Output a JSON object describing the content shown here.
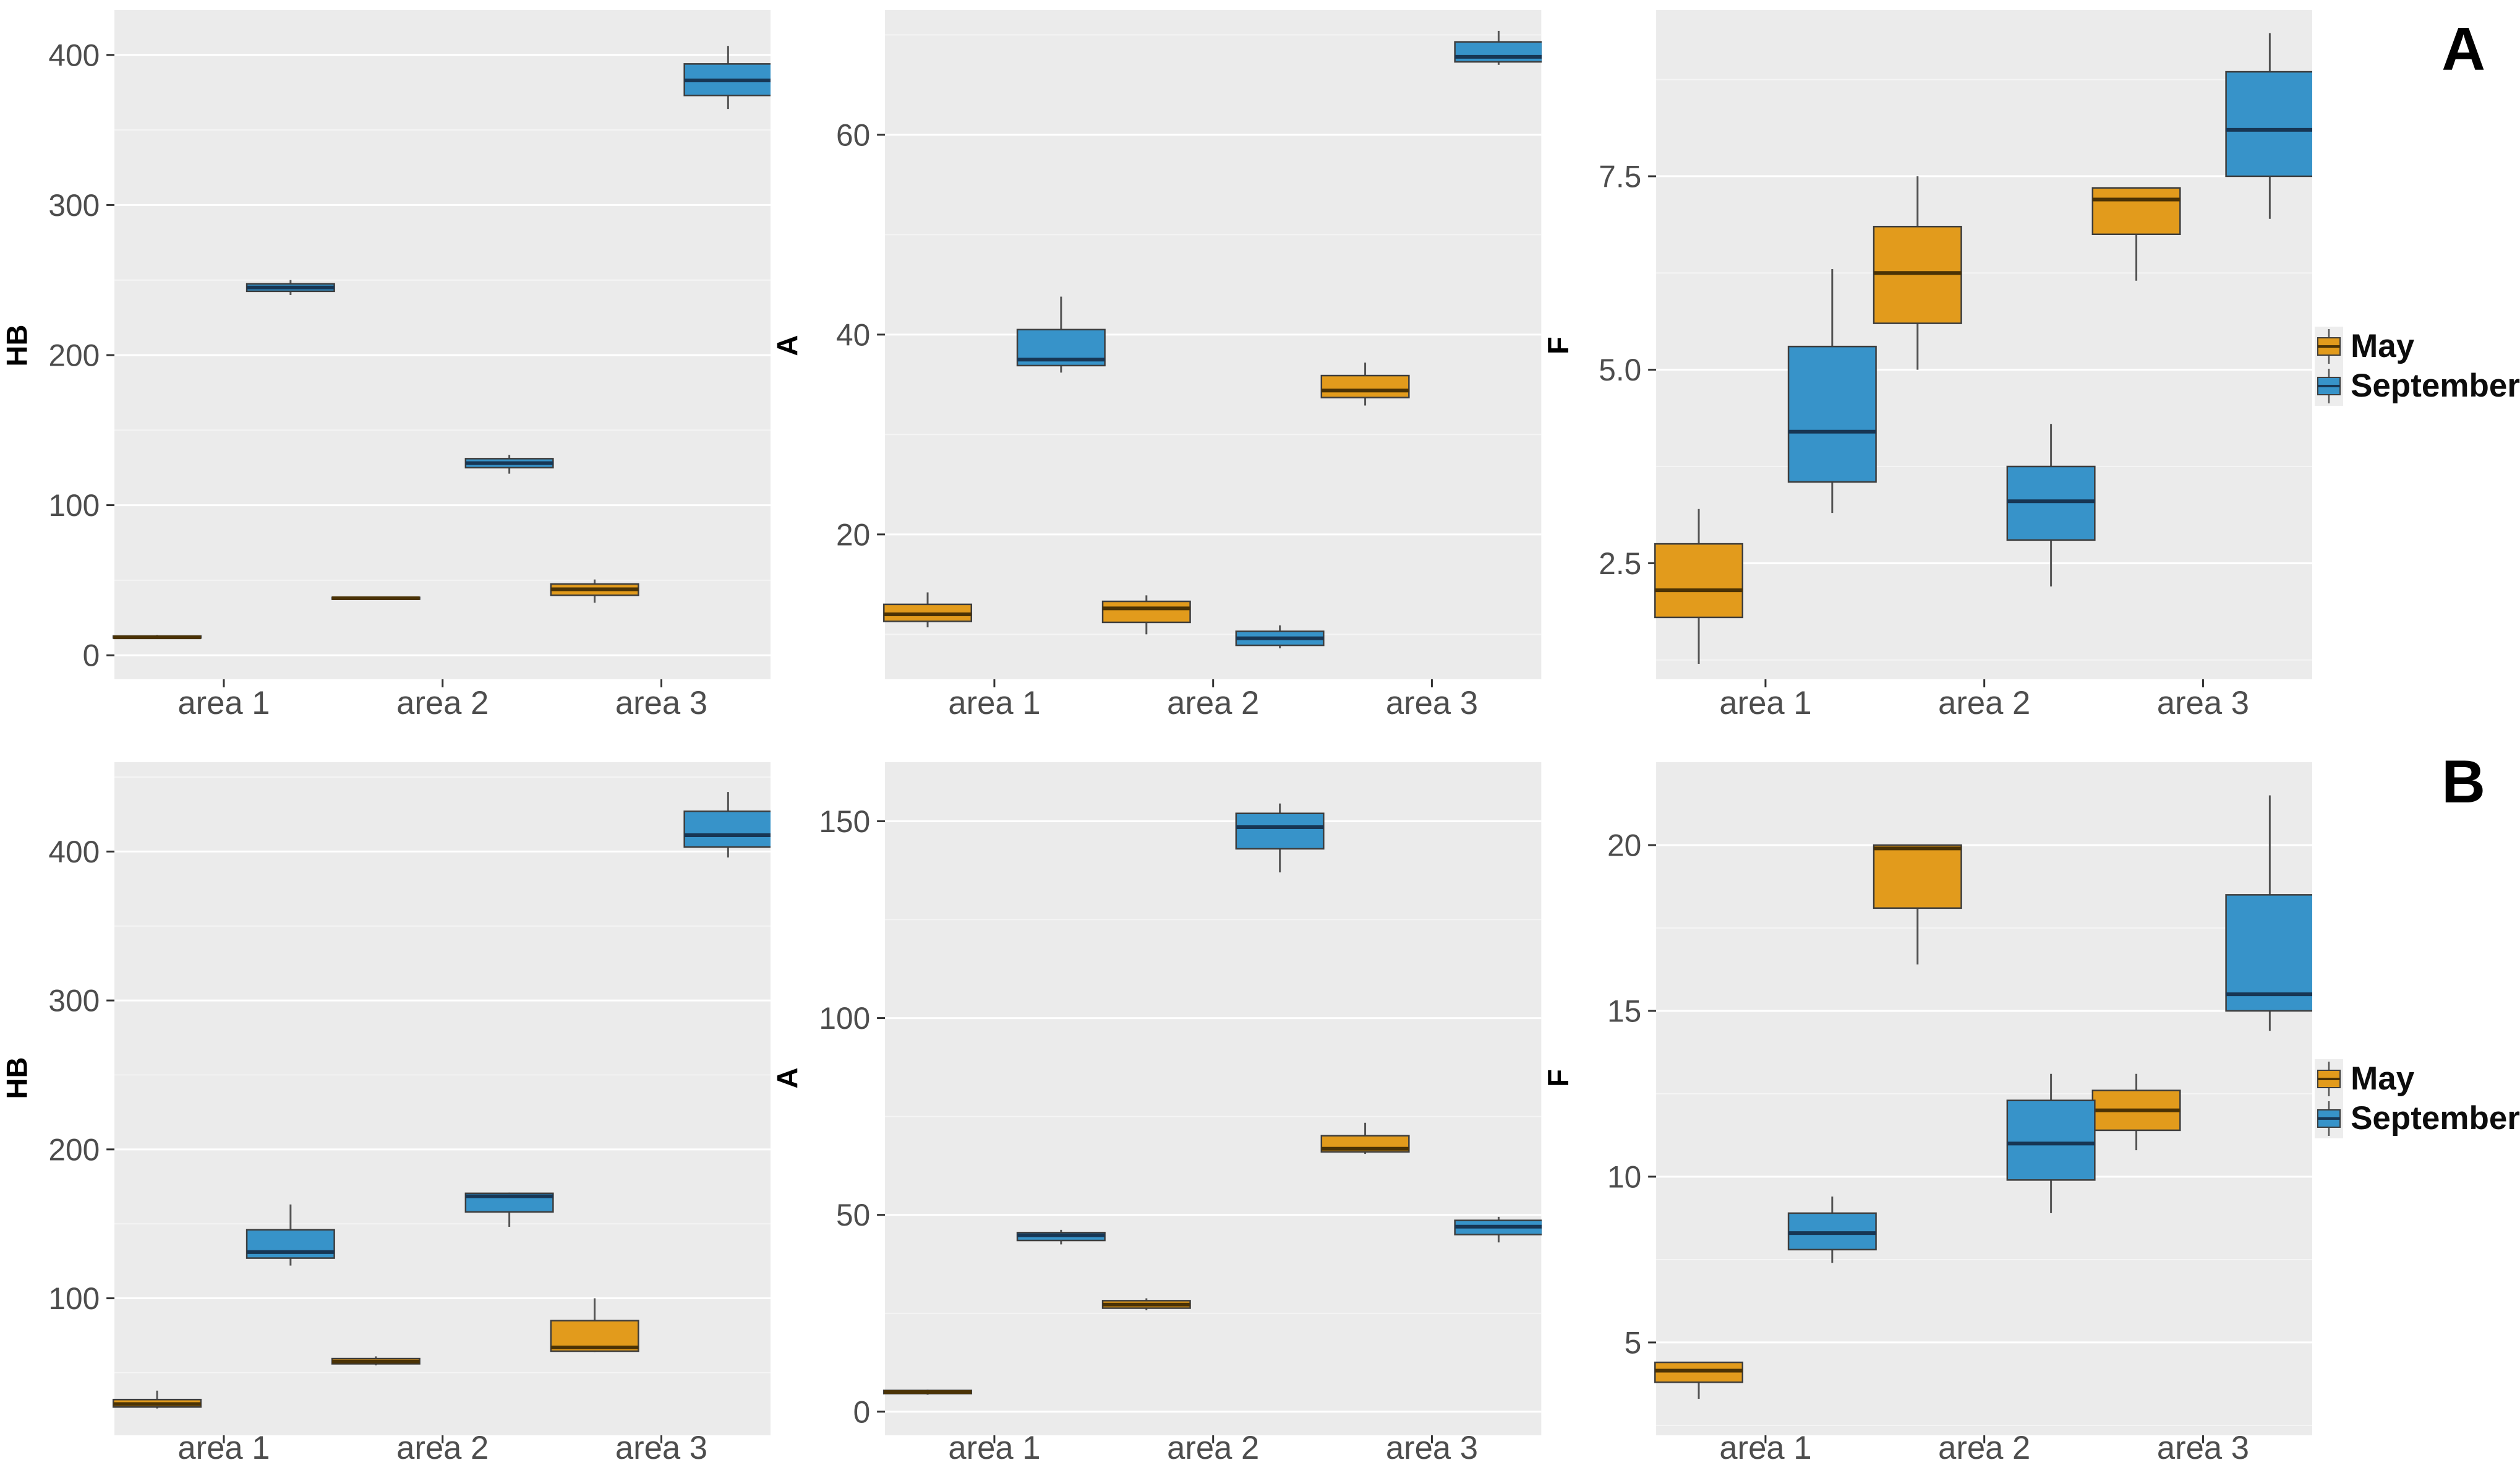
{
  "figure": {
    "panel_labels": [
      "A",
      "B"
    ],
    "panel_bg": "#EBEBEB",
    "grid_major_color": "#FFFFFF",
    "grid_minor_color": "#F5F5F5",
    "tick_mark_color": "#333333",
    "tick_text_color": "#4D4D4D",
    "whisker_color": "#545454",
    "box_border_color": "#3D3D3D"
  },
  "legend": {
    "items": [
      {
        "label": "May",
        "color": "#E29B1C",
        "median_color": "#4A3205"
      },
      {
        "label": "September",
        "color": "#3793C9",
        "median_color": "#173654"
      }
    ]
  },
  "chart_data": [
    {
      "id": "A-HB",
      "row": "A",
      "type": "boxplot",
      "ylabel": "HB",
      "categories": [
        "area 1",
        "area 2",
        "area 3"
      ],
      "ylim": [
        -16,
        430
      ],
      "yticks": [
        0,
        100,
        200,
        300,
        400
      ],
      "ytick_labels": [
        "0",
        "100",
        "200",
        "300",
        "400"
      ],
      "series": [
        {
          "name": "May",
          "boxes": [
            {
              "lo": 11,
              "q1": 11.5,
              "med": 12,
              "q3": 12.8,
              "hi": 13.5
            },
            {
              "lo": 37,
              "q1": 37.5,
              "med": 38,
              "q3": 38.6,
              "hi": 39.2
            },
            {
              "lo": 35,
              "q1": 40,
              "med": 44,
              "q3": 47.5,
              "hi": 50.5
            }
          ]
        },
        {
          "name": "September",
          "boxes": [
            {
              "lo": 240,
              "q1": 242.5,
              "med": 245,
              "q3": 247.5,
              "hi": 250
            },
            {
              "lo": 121,
              "q1": 125,
              "med": 128,
              "q3": 131,
              "hi": 133.5
            },
            {
              "lo": 364,
              "q1": 373,
              "med": 383,
              "q3": 394,
              "hi": 406
            }
          ]
        }
      ]
    },
    {
      "id": "A-A",
      "row": "A",
      "type": "boxplot",
      "ylabel": "A",
      "categories": [
        "area 1",
        "area 2",
        "area 3"
      ],
      "ylim": [
        5.5,
        72.5
      ],
      "yticks": [
        20,
        40,
        60
      ],
      "ytick_labels": [
        "20",
        "40",
        "60"
      ],
      "series": [
        {
          "name": "May",
          "boxes": [
            {
              "lo": 10.7,
              "q1": 11.3,
              "med": 12.0,
              "q3": 13.0,
              "hi": 14.2
            },
            {
              "lo": 10.0,
              "q1": 11.2,
              "med": 12.6,
              "q3": 13.3,
              "hi": 13.9
            },
            {
              "lo": 32.9,
              "q1": 33.7,
              "med": 34.4,
              "q3": 35.9,
              "hi": 37.2
            }
          ]
        },
        {
          "name": "September",
          "boxes": [
            {
              "lo": 36.2,
              "q1": 36.9,
              "med": 37.5,
              "q3": 40.5,
              "hi": 43.8
            },
            {
              "lo": 8.6,
              "q1": 8.9,
              "med": 9.6,
              "q3": 10.3,
              "hi": 10.9
            },
            {
              "lo": 67.0,
              "q1": 67.3,
              "med": 67.8,
              "q3": 69.3,
              "hi": 70.4
            }
          ]
        }
      ]
    },
    {
      "id": "A-F",
      "row": "A",
      "type": "boxplot",
      "ylabel": "F",
      "categories": [
        "area 1",
        "area 2",
        "area 3"
      ],
      "ylim": [
        1.0,
        9.65
      ],
      "yticks": [
        2.5,
        5.0,
        7.5
      ],
      "ytick_labels": [
        "2.5",
        "5.0",
        "7.5"
      ],
      "series": [
        {
          "name": "May",
          "boxes": [
            {
              "lo": 1.2,
              "q1": 1.8,
              "med": 2.15,
              "q3": 2.75,
              "hi": 3.2
            },
            {
              "lo": 5.0,
              "q1": 5.6,
              "med": 6.25,
              "q3": 6.85,
              "hi": 7.5
            },
            {
              "lo": 6.15,
              "q1": 6.75,
              "med": 7.2,
              "q3": 7.35,
              "hi": 7.35
            }
          ]
        },
        {
          "name": "September",
          "boxes": [
            {
              "lo": 3.15,
              "q1": 3.55,
              "med": 4.2,
              "q3": 5.3,
              "hi": 6.3
            },
            {
              "lo": 2.2,
              "q1": 2.8,
              "med": 3.3,
              "q3": 3.75,
              "hi": 4.3
            },
            {
              "lo": 6.95,
              "q1": 7.5,
              "med": 8.1,
              "q3": 8.85,
              "hi": 9.35
            }
          ]
        }
      ]
    },
    {
      "id": "B-HB",
      "row": "B",
      "type": "boxplot",
      "ylabel": "HB",
      "categories": [
        "area 1",
        "area 2",
        "area 3"
      ],
      "ylim": [
        8,
        460
      ],
      "yticks": [
        100,
        200,
        300,
        400
      ],
      "ytick_labels": [
        "100",
        "200",
        "300",
        "400"
      ],
      "series": [
        {
          "name": "May",
          "boxes": [
            {
              "lo": 26,
              "q1": 27,
              "med": 29,
              "q3": 32,
              "hi": 38
            },
            {
              "lo": 55,
              "q1": 56,
              "med": 57.5,
              "q3": 59.5,
              "hi": 61
            },
            {
              "lo": 64,
              "q1": 64.5,
              "med": 67,
              "q3": 85,
              "hi": 100
            }
          ]
        },
        {
          "name": "September",
          "boxes": [
            {
              "lo": 122,
              "q1": 127,
              "med": 131,
              "q3": 146,
              "hi": 163
            },
            {
              "lo": 148,
              "q1": 158,
              "med": 168.5,
              "q3": 170.5,
              "hi": 171
            },
            {
              "lo": 396,
              "q1": 403,
              "med": 411,
              "q3": 427,
              "hi": 440
            }
          ]
        }
      ]
    },
    {
      "id": "B-A",
      "row": "B",
      "type": "boxplot",
      "ylabel": "A",
      "categories": [
        "area 1",
        "area 2",
        "area 3"
      ],
      "ylim": [
        -6,
        165
      ],
      "yticks": [
        0,
        50,
        100,
        150
      ],
      "ytick_labels": [
        "0",
        "50",
        "100",
        "150"
      ],
      "series": [
        {
          "name": "May",
          "boxes": [
            {
              "lo": 4.3,
              "q1": 4.6,
              "med": 5.0,
              "q3": 5.4,
              "hi": 5.6
            },
            {
              "lo": 25.8,
              "q1": 26.3,
              "med": 27.2,
              "q3": 28.2,
              "hi": 28.8
            },
            {
              "lo": 65.5,
              "q1": 66,
              "med": 66.8,
              "q3": 70.1,
              "hi": 73.4
            }
          ]
        },
        {
          "name": "September",
          "boxes": [
            {
              "lo": 42.5,
              "q1": 43.5,
              "med": 44.8,
              "q3": 45.5,
              "hi": 46.2
            },
            {
              "lo": 137,
              "q1": 143,
              "med": 148.5,
              "q3": 152,
              "hi": 154.5
            },
            {
              "lo": 43,
              "q1": 45,
              "med": 47,
              "q3": 48.6,
              "hi": 49.5
            }
          ]
        }
      ]
    },
    {
      "id": "B-F",
      "row": "B",
      "type": "boxplot",
      "ylabel": "F",
      "categories": [
        "area 1",
        "area 2",
        "area 3"
      ],
      "ylim": [
        2.2,
        22.5
      ],
      "yticks": [
        5,
        10,
        15,
        20
      ],
      "ytick_labels": [
        "5",
        "10",
        "15",
        "20"
      ],
      "series": [
        {
          "name": "May",
          "boxes": [
            {
              "lo": 3.3,
              "q1": 3.8,
              "med": 4.15,
              "q3": 4.4,
              "hi": 4.4
            },
            {
              "lo": 16.4,
              "q1": 18.1,
              "med": 19.9,
              "q3": 20.0,
              "hi": 20.0
            },
            {
              "lo": 10.8,
              "q1": 11.4,
              "med": 12.0,
              "q3": 12.6,
              "hi": 13.1
            }
          ]
        },
        {
          "name": "September",
          "boxes": [
            {
              "lo": 7.4,
              "q1": 7.8,
              "med": 8.3,
              "q3": 8.9,
              "hi": 9.4
            },
            {
              "lo": 8.9,
              "q1": 9.9,
              "med": 11.0,
              "q3": 12.3,
              "hi": 13.1
            },
            {
              "lo": 14.4,
              "q1": 15.0,
              "med": 15.5,
              "q3": 18.5,
              "hi": 21.5
            }
          ]
        }
      ]
    }
  ]
}
